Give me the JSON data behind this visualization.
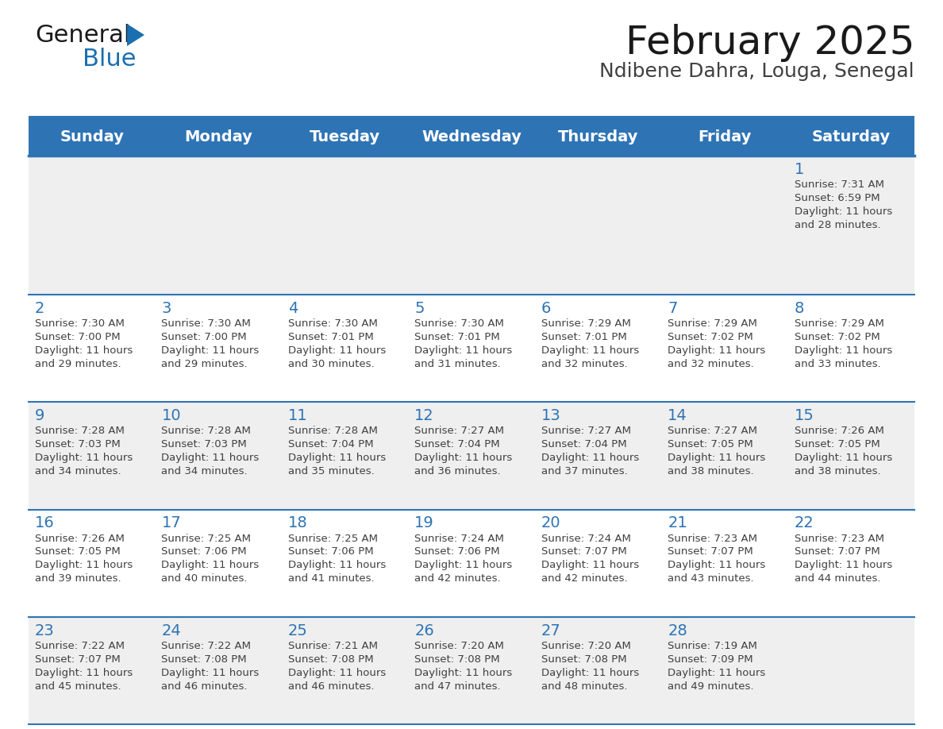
{
  "title": "February 2025",
  "subtitle": "Ndibene Dahra, Louga, Senegal",
  "days_of_week": [
    "Sunday",
    "Monday",
    "Tuesday",
    "Wednesday",
    "Thursday",
    "Friday",
    "Saturday"
  ],
  "header_bg": "#2E74B5",
  "header_text": "#FFFFFF",
  "row_bg_even": "#EFEFEF",
  "row_bg_odd": "#FFFFFF",
  "separator_color": "#2E74B5",
  "day_number_color": "#2E74B5",
  "info_text_color": "#404040",
  "title_color": "#1a1a1a",
  "subtitle_color": "#404040",
  "calendar_data": [
    {
      "day": 1,
      "col": 6,
      "row": 0,
      "sunrise": "7:31 AM",
      "sunset": "6:59 PM",
      "daylight": "11 hours and 28 minutes"
    },
    {
      "day": 2,
      "col": 0,
      "row": 1,
      "sunrise": "7:30 AM",
      "sunset": "7:00 PM",
      "daylight": "11 hours and 29 minutes"
    },
    {
      "day": 3,
      "col": 1,
      "row": 1,
      "sunrise": "7:30 AM",
      "sunset": "7:00 PM",
      "daylight": "11 hours and 29 minutes"
    },
    {
      "day": 4,
      "col": 2,
      "row": 1,
      "sunrise": "7:30 AM",
      "sunset": "7:01 PM",
      "daylight": "11 hours and 30 minutes"
    },
    {
      "day": 5,
      "col": 3,
      "row": 1,
      "sunrise": "7:30 AM",
      "sunset": "7:01 PM",
      "daylight": "11 hours and 31 minutes"
    },
    {
      "day": 6,
      "col": 4,
      "row": 1,
      "sunrise": "7:29 AM",
      "sunset": "7:01 PM",
      "daylight": "11 hours and 32 minutes"
    },
    {
      "day": 7,
      "col": 5,
      "row": 1,
      "sunrise": "7:29 AM",
      "sunset": "7:02 PM",
      "daylight": "11 hours and 32 minutes"
    },
    {
      "day": 8,
      "col": 6,
      "row": 1,
      "sunrise": "7:29 AM",
      "sunset": "7:02 PM",
      "daylight": "11 hours and 33 minutes"
    },
    {
      "day": 9,
      "col": 0,
      "row": 2,
      "sunrise": "7:28 AM",
      "sunset": "7:03 PM",
      "daylight": "11 hours and 34 minutes"
    },
    {
      "day": 10,
      "col": 1,
      "row": 2,
      "sunrise": "7:28 AM",
      "sunset": "7:03 PM",
      "daylight": "11 hours and 34 minutes"
    },
    {
      "day": 11,
      "col": 2,
      "row": 2,
      "sunrise": "7:28 AM",
      "sunset": "7:04 PM",
      "daylight": "11 hours and 35 minutes"
    },
    {
      "day": 12,
      "col": 3,
      "row": 2,
      "sunrise": "7:27 AM",
      "sunset": "7:04 PM",
      "daylight": "11 hours and 36 minutes"
    },
    {
      "day": 13,
      "col": 4,
      "row": 2,
      "sunrise": "7:27 AM",
      "sunset": "7:04 PM",
      "daylight": "11 hours and 37 minutes"
    },
    {
      "day": 14,
      "col": 5,
      "row": 2,
      "sunrise": "7:27 AM",
      "sunset": "7:05 PM",
      "daylight": "11 hours and 38 minutes"
    },
    {
      "day": 15,
      "col": 6,
      "row": 2,
      "sunrise": "7:26 AM",
      "sunset": "7:05 PM",
      "daylight": "11 hours and 38 minutes"
    },
    {
      "day": 16,
      "col": 0,
      "row": 3,
      "sunrise": "7:26 AM",
      "sunset": "7:05 PM",
      "daylight": "11 hours and 39 minutes"
    },
    {
      "day": 17,
      "col": 1,
      "row": 3,
      "sunrise": "7:25 AM",
      "sunset": "7:06 PM",
      "daylight": "11 hours and 40 minutes"
    },
    {
      "day": 18,
      "col": 2,
      "row": 3,
      "sunrise": "7:25 AM",
      "sunset": "7:06 PM",
      "daylight": "11 hours and 41 minutes"
    },
    {
      "day": 19,
      "col": 3,
      "row": 3,
      "sunrise": "7:24 AM",
      "sunset": "7:06 PM",
      "daylight": "11 hours and 42 minutes"
    },
    {
      "day": 20,
      "col": 4,
      "row": 3,
      "sunrise": "7:24 AM",
      "sunset": "7:07 PM",
      "daylight": "11 hours and 42 minutes"
    },
    {
      "day": 21,
      "col": 5,
      "row": 3,
      "sunrise": "7:23 AM",
      "sunset": "7:07 PM",
      "daylight": "11 hours and 43 minutes"
    },
    {
      "day": 22,
      "col": 6,
      "row": 3,
      "sunrise": "7:23 AM",
      "sunset": "7:07 PM",
      "daylight": "11 hours and 44 minutes"
    },
    {
      "day": 23,
      "col": 0,
      "row": 4,
      "sunrise": "7:22 AM",
      "sunset": "7:07 PM",
      "daylight": "11 hours and 45 minutes"
    },
    {
      "day": 24,
      "col": 1,
      "row": 4,
      "sunrise": "7:22 AM",
      "sunset": "7:08 PM",
      "daylight": "11 hours and 46 minutes"
    },
    {
      "day": 25,
      "col": 2,
      "row": 4,
      "sunrise": "7:21 AM",
      "sunset": "7:08 PM",
      "daylight": "11 hours and 46 minutes"
    },
    {
      "day": 26,
      "col": 3,
      "row": 4,
      "sunrise": "7:20 AM",
      "sunset": "7:08 PM",
      "daylight": "11 hours and 47 minutes"
    },
    {
      "day": 27,
      "col": 4,
      "row": 4,
      "sunrise": "7:20 AM",
      "sunset": "7:08 PM",
      "daylight": "11 hours and 48 minutes"
    },
    {
      "day": 28,
      "col": 5,
      "row": 4,
      "sunrise": "7:19 AM",
      "sunset": "7:09 PM",
      "daylight": "11 hours and 49 minutes"
    }
  ],
  "num_rows": 5,
  "num_cols": 7,
  "logo_color_general": "#1a1a1a",
  "logo_color_blue": "#1a6faf",
  "logo_triangle_color": "#1a6faf"
}
